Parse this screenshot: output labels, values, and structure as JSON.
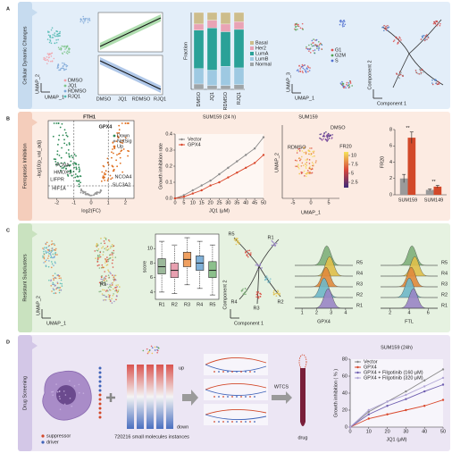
{
  "panels": [
    {
      "letter": "A",
      "label": "Cellular Dynamic Changes",
      "umap": {
        "x_label": "UMAP_1",
        "y_label": "UMAP_2",
        "legend": [
          {
            "name": "DMSO",
            "color": "#f2a0a8"
          },
          {
            "name": "JQ1",
            "color": "#7dc48a"
          },
          {
            "name": "RDMSO",
            "color": "#7fa8d8"
          },
          {
            "name": "RJQ1",
            "color": "#4fb8b0"
          }
        ]
      },
      "trend": {
        "categories": [
          "DMSO",
          "JQ1",
          "RDMSO",
          "RJQ1"
        ]
      },
      "fraction": {
        "type": "stacked-bar",
        "y_label": "Fraction",
        "ylim": [
          0,
          1
        ],
        "categories": [
          "DMSO",
          "JQ1",
          "RDMSO",
          "RJQ1"
        ],
        "series": [
          {
            "name": "Basal",
            "color": "#cdbd8c",
            "values": [
              0.15,
              0.1,
              0.15,
              0.12
            ]
          },
          {
            "name": "Her2",
            "color": "#e9a3b5",
            "values": [
              0.08,
              0.1,
              0.1,
              0.1
            ]
          },
          {
            "name": "LumA",
            "color": "#2aa198",
            "values": [
              0.5,
              0.55,
              0.45,
              0.5
            ]
          },
          {
            "name": "LumB",
            "color": "#9ec9e2",
            "values": [
              0.2,
              0.2,
              0.25,
              0.22
            ]
          },
          {
            "name": "Normal",
            "color": "#9fa5a8",
            "values": [
              0.07,
              0.05,
              0.05,
              0.06
            ]
          }
        ]
      },
      "umap3": {
        "x_label": "UMAP_1",
        "y_label": "UMAP_3",
        "legend": [
          {
            "name": "G1",
            "color": "#e05050"
          },
          {
            "name": "G2M",
            "color": "#50a050"
          },
          {
            "name": "S",
            "color": "#5070d0"
          }
        ]
      },
      "trajectory": {
        "x_label": "Component 1",
        "y_label": "Component 2"
      }
    },
    {
      "letter": "B",
      "label": "Ferroptosis Inhibition",
      "volcano": {
        "y_label": "-log10(p_val_adj)",
        "x_label": "log2(FC)",
        "xlim": [
          -2.5,
          2.5
        ],
        "xticks": [
          -2,
          -1,
          0,
          1,
          2
        ],
        "genes": [
          "FTH1",
          "GPX4",
          "PCNA",
          "HMOX1",
          "LIFPR",
          "HIF1A",
          "NCOA4",
          "SLC3A2"
        ],
        "legend": [
          {
            "name": "Down",
            "color": "#2e8b57"
          },
          {
            "name": "NotSig",
            "color": "#9a9a9a"
          },
          {
            "name": "Up",
            "color": "#e07020"
          }
        ]
      },
      "growth": {
        "type": "line",
        "title": "SUM159 (24 h)",
        "x_label": "JQ1 (μM)",
        "y_label": "Growth inhibition rate",
        "x": [
          0,
          5,
          10,
          15,
          20,
          25,
          30,
          35,
          40,
          45,
          50
        ],
        "xlim": [
          0,
          50
        ],
        "xticks": [
          0,
          5,
          10,
          15,
          20,
          25,
          30,
          35,
          40,
          45,
          50
        ],
        "ylim": [
          0,
          0.4
        ],
        "yticks": [
          {
            "value": 0,
            "label": "0.0"
          },
          0.1,
          0.2,
          0.3,
          0.4
        ],
        "series": [
          {
            "name": "Vector",
            "color": "#8a8a8a",
            "values": [
              0,
              0.02,
              0.05,
              0.08,
              0.11,
              0.15,
              0.19,
              0.23,
              0.27,
              0.31,
              0.38
            ]
          },
          {
            "name": "GPX4",
            "color": "#d9472b",
            "values": [
              0,
              0.01,
              0.03,
              0.05,
              0.08,
              0.1,
              0.13,
              0.16,
              0.19,
              0.22,
              0.27
            ]
          }
        ]
      },
      "umap": {
        "title": "SUM159",
        "x_label": "UMAP_1",
        "y_label": "UMAP_2",
        "xlim": [
          -8,
          8
        ],
        "xticks": [
          -5,
          0,
          5
        ],
        "groups": [
          "RDMSO",
          "DMSO"
        ],
        "colorbar": {
          "label": "FR20",
          "lim": [
            1,
            11
          ],
          "ticks": [
            2.5,
            5,
            7.5,
            10
          ]
        }
      },
      "fr20": {
        "type": "bar",
        "y_label": "FR20",
        "categories": [
          "SUM159",
          "SUM149"
        ],
        "ylim": [
          0,
          8
        ],
        "yticks": [
          0,
          2,
          4,
          6,
          8
        ],
        "series": [
          {
            "name": "Vector",
            "color": "#9a9a9a",
            "values": [
              2,
              0.6
            ],
            "errors": [
              0.5,
              0.1
            ]
          },
          {
            "name": "GPX4",
            "color": "#d2492a",
            "values": [
              7,
              1
            ],
            "errors": [
              0.7,
              0.15
            ]
          }
        ],
        "annotations": [
          "**",
          "**"
        ]
      }
    },
    {
      "letter": "C",
      "label": "Resistant Subclusters",
      "umap": {
        "x_label": "UMAP_1",
        "y_label": "UMAP_2",
        "cluster_label": "R1"
      },
      "score": {
        "type": "box",
        "y_label": "score",
        "categories": [
          "R1",
          "R2",
          "R3",
          "R4",
          "R5"
        ],
        "ylim": [
          3,
          12
        ],
        "yticks": [
          4,
          6,
          8,
          10
        ],
        "colors": [
          "#9bb89a",
          "#e8a0b0",
          "#f0a060",
          "#7fb0d8",
          "#8cc08c"
        ],
        "stats": [
          {
            "min": 4,
            "q1": 6.5,
            "median": 7.5,
            "q3": 8.6,
            "max": 11
          },
          {
            "min": 3.8,
            "q1": 6,
            "median": 7,
            "q3": 8,
            "max": 10.5
          },
          {
            "min": 5,
            "q1": 7.5,
            "median": 8.5,
            "q3": 9.5,
            "max": 11.5
          },
          {
            "min": 4.5,
            "q1": 7,
            "median": 8,
            "q3": 9,
            "max": 11
          },
          {
            "min": 3.6,
            "q1": 6,
            "median": 7,
            "q3": 8.2,
            "max": 10.5
          }
        ]
      },
      "trajectory": {
        "x_label": "Component 1",
        "y_label": "Component 2",
        "labels": [
          "R5",
          "R1",
          "R4",
          "R3",
          "R2"
        ]
      },
      "ridges": [
        {
          "x_label": "GPX4",
          "xlim": [
            0.5,
            4.5
          ],
          "xticks": [
            1,
            2,
            3,
            4
          ],
          "rows": [
            "R5",
            "R4",
            "R3",
            "R2",
            "R1"
          ],
          "colors": [
            "#7fb07a",
            "#e0c04a",
            "#e08a3c",
            "#6fb8c8",
            "#9a86c6"
          ]
        },
        {
          "x_label": "FTL",
          "xlim": [
            1,
            7
          ],
          "xticks": [
            2,
            4,
            6
          ],
          "rows": [
            "R5",
            "R4",
            "R3",
            "R2",
            "R1"
          ],
          "colors": [
            "#7fb07a",
            "#e0c04a",
            "#e08a3c",
            "#6fb8c8",
            "#9a86c6"
          ]
        }
      ]
    },
    {
      "letter": "D",
      "label": "Drug Screening",
      "legend": [
        {
          "name": "suppressor",
          "color": "#d2492a"
        },
        {
          "name": "driver",
          "color": "#3f63b8"
        }
      ],
      "signature": {
        "up": "up",
        "down": "down",
        "caption": "720216 small molecules instances"
      },
      "method": "WTCS",
      "drug": "drug",
      "growth": {
        "type": "line",
        "title": "SUM159 (24h)",
        "x_label": "JQ1 (μM)",
        "y_label": "Growth inhibition ( % )",
        "x": [
          0,
          10,
          20,
          30,
          40,
          50
        ],
        "xlim": [
          0,
          50
        ],
        "xticks": [
          0,
          10,
          20,
          30,
          40,
          50
        ],
        "ylim": [
          0,
          80
        ],
        "yticks": [
          0,
          20,
          40,
          60,
          80
        ],
        "series": [
          {
            "name": "Vector",
            "color": "#8a8a8a",
            "values": [
              0,
              18,
              30,
              42,
              55,
              68
            ]
          },
          {
            "name": "GPX4",
            "color": "#d9472b",
            "values": [
              0,
              10,
              15,
              20,
              25,
              32
            ]
          },
          {
            "name": "GPX4 + Filgotinib (160 μM)",
            "color": "#6f5fb0",
            "values": [
              0,
              15,
              25,
              33,
              42,
              50
            ]
          },
          {
            "name": "GPX4 + Filgotinib (320 μM)",
            "color": "#b0a5d6",
            "values": [
              0,
              20,
              30,
              38,
              48,
              58
            ]
          }
        ]
      }
    }
  ]
}
